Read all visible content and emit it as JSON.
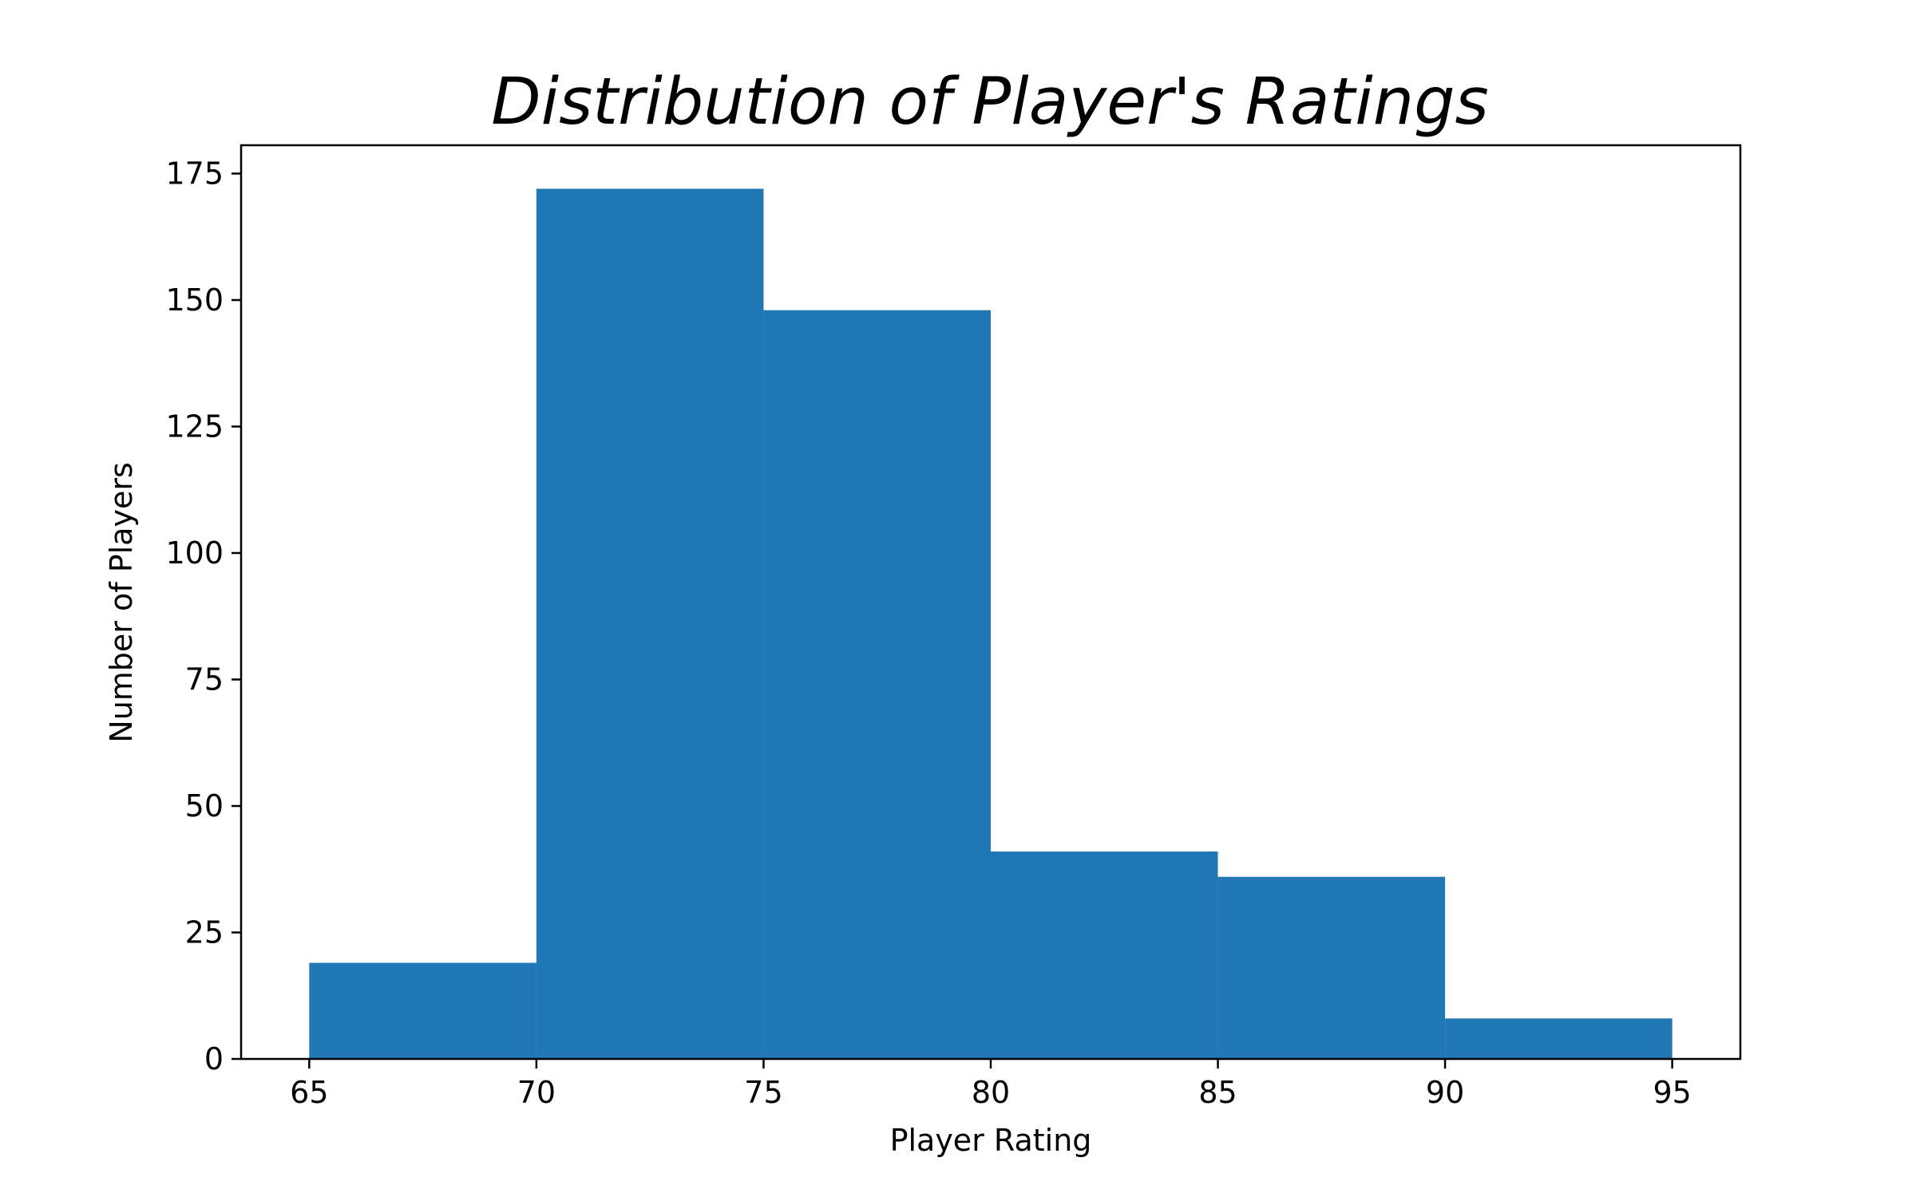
{
  "chart_data": {
    "type": "bar",
    "title": "Distribution of Player's Ratings",
    "xlabel": "Player Rating",
    "ylabel": "Number of Players",
    "bins": [
      {
        "start": 65,
        "end": 70,
        "count": 19
      },
      {
        "start": 70,
        "end": 75,
        "count": 172
      },
      {
        "start": 75,
        "end": 80,
        "count": 148
      },
      {
        "start": 80,
        "end": 85,
        "count": 41
      },
      {
        "start": 85,
        "end": 90,
        "count": 36
      },
      {
        "start": 90,
        "end": 95,
        "count": 8
      }
    ],
    "xticks": [
      "65",
      "70",
      "75",
      "80",
      "85",
      "90",
      "95"
    ],
    "yticks": [
      "0",
      "25",
      "50",
      "75",
      "100",
      "125",
      "150",
      "175"
    ],
    "xlim": [
      63.5,
      96.5
    ],
    "ylim": [
      0,
      180.6
    ],
    "bar_color": "#2077b4",
    "grid": false,
    "legend": "none"
  }
}
